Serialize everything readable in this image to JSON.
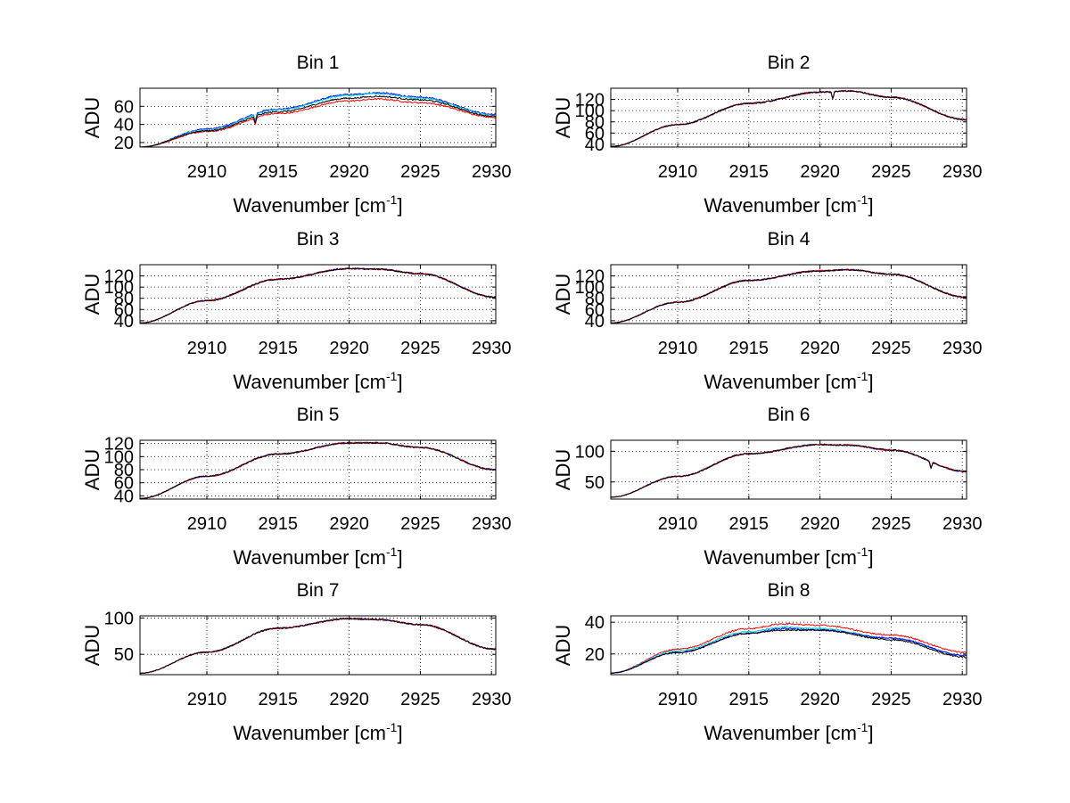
{
  "colors": {
    "black": "#000000",
    "blue": "#0000ff",
    "cyan": "#00d0d0",
    "red": "#ff0000"
  },
  "chart_data": [
    {
      "type": "line",
      "title": "Bin 1",
      "xlabel": "Wavenumber [cm",
      "xlabel_sup": "-1",
      "xlabel_end": "]",
      "ylabel": "ADU",
      "xlim": [
        2905.3,
        2930.3
      ],
      "xticks": [
        2910,
        2915,
        2920,
        2925,
        2930
      ],
      "ylim": [
        15,
        80
      ],
      "yticks": [
        20,
        40,
        60
      ],
      "grid": true,
      "x": [
        2905.3,
        2910,
        2915,
        2920,
        2922,
        2925,
        2930.3
      ],
      "series": [
        {
          "color": "blue",
          "values": [
            15,
            35,
            57,
            73,
            75,
            70,
            51
          ]
        },
        {
          "color": "cyan",
          "values": [
            15,
            34,
            56,
            72,
            74,
            69,
            50
          ]
        },
        {
          "color": "red",
          "values": [
            15,
            32,
            52,
            66,
            68,
            64,
            48
          ]
        },
        {
          "color": "black",
          "values": [
            15,
            33,
            54,
            69,
            71,
            67,
            49
          ]
        }
      ],
      "dips": [
        {
          "x": 2913.4,
          "depth": 8
        }
      ]
    },
    {
      "type": "line",
      "title": "Bin 2",
      "xlabel": "Wavenumber [cm",
      "xlabel_sup": "-1",
      "xlabel_end": "]",
      "ylabel": "ADU",
      "xlim": [
        2905.3,
        2930.3
      ],
      "xticks": [
        2910,
        2915,
        2920,
        2925,
        2930
      ],
      "ylim": [
        35,
        140
      ],
      "yticks": [
        40,
        60,
        80,
        100,
        120
      ],
      "grid": true,
      "x": [
        2905.3,
        2910,
        2915,
        2920,
        2922,
        2925,
        2930.3
      ],
      "series": [
        {
          "color": "blue",
          "values": [
            36,
            75,
            113,
            133,
            135,
            124,
            84
          ]
        },
        {
          "color": "red",
          "values": [
            36,
            75,
            113,
            133,
            135,
            124,
            84
          ]
        },
        {
          "color": "black",
          "values": [
            36,
            75,
            113,
            133,
            135,
            124,
            84
          ]
        }
      ],
      "dips": [
        {
          "x": 2920.9,
          "depth": 12
        }
      ]
    },
    {
      "type": "line",
      "title": "Bin 3",
      "xlabel": "Wavenumber [cm",
      "xlabel_sup": "-1",
      "xlabel_end": "]",
      "ylabel": "ADU",
      "xlim": [
        2905.3,
        2930.3
      ],
      "xticks": [
        2910,
        2915,
        2920,
        2925,
        2930
      ],
      "ylim": [
        35,
        140
      ],
      "yticks": [
        40,
        60,
        80,
        100,
        120
      ],
      "grid": true,
      "x": [
        2905.3,
        2910,
        2915,
        2920,
        2922,
        2925,
        2930.3
      ],
      "series": [
        {
          "color": "blue",
          "values": [
            36,
            76,
            114,
            133,
            132,
            124,
            82
          ]
        },
        {
          "color": "red",
          "values": [
            36,
            76,
            114,
            133,
            132,
            124,
            82
          ]
        },
        {
          "color": "black",
          "values": [
            36,
            76,
            114,
            133,
            132,
            124,
            82
          ]
        }
      ],
      "dips": []
    },
    {
      "type": "line",
      "title": "Bin 4",
      "xlabel": "Wavenumber [cm",
      "xlabel_sup": "-1",
      "xlabel_end": "]",
      "ylabel": "ADU",
      "xlim": [
        2905.3,
        2930.3
      ],
      "xticks": [
        2910,
        2915,
        2920,
        2925,
        2930
      ],
      "ylim": [
        35,
        140
      ],
      "yticks": [
        40,
        60,
        80,
        100,
        120
      ],
      "grid": true,
      "x": [
        2905.3,
        2910,
        2915,
        2920,
        2922,
        2925,
        2930.3
      ],
      "series": [
        {
          "color": "blue",
          "values": [
            36,
            73,
            112,
            129,
            131,
            123,
            82
          ]
        },
        {
          "color": "red",
          "values": [
            36,
            73,
            112,
            129,
            131,
            123,
            82
          ]
        },
        {
          "color": "black",
          "values": [
            36,
            73,
            112,
            129,
            131,
            123,
            82
          ]
        }
      ],
      "dips": []
    },
    {
      "type": "line",
      "title": "Bin 5",
      "xlabel": "Wavenumber [cm",
      "xlabel_sup": "-1",
      "xlabel_end": "]",
      "ylabel": "ADU",
      "xlim": [
        2905.3,
        2930.3
      ],
      "xticks": [
        2910,
        2915,
        2920,
        2925,
        2930
      ],
      "ylim": [
        35,
        125
      ],
      "yticks": [
        40,
        60,
        80,
        100,
        120
      ],
      "grid": true,
      "x": [
        2905.3,
        2910,
        2915,
        2920,
        2922,
        2925,
        2930.3
      ],
      "series": [
        {
          "color": "blue",
          "values": [
            36,
            70,
            104,
            121,
            121,
            114,
            80
          ]
        },
        {
          "color": "red",
          "values": [
            36,
            70,
            104,
            121,
            121,
            114,
            80
          ]
        },
        {
          "color": "black",
          "values": [
            36,
            70,
            104,
            121,
            121,
            114,
            80
          ]
        }
      ],
      "dips": []
    },
    {
      "type": "line",
      "title": "Bin 6",
      "xlabel": "Wavenumber [cm",
      "xlabel_sup": "-1",
      "xlabel_end": "]",
      "ylabel": "ADU",
      "xlim": [
        2905.3,
        2930.3
      ],
      "xticks": [
        2910,
        2915,
        2920,
        2925,
        2930
      ],
      "ylim": [
        22,
        118
      ],
      "yticks": [
        50,
        100
      ],
      "grid": true,
      "x": [
        2905.3,
        2910,
        2915,
        2920,
        2922,
        2925,
        2930.3
      ],
      "series": [
        {
          "color": "blue",
          "values": [
            25,
            59,
            96,
            111,
            110,
            102,
            67
          ]
        },
        {
          "color": "red",
          "values": [
            25,
            59,
            96,
            111,
            110,
            102,
            67
          ]
        },
        {
          "color": "black",
          "values": [
            25,
            59,
            96,
            111,
            110,
            102,
            67
          ]
        }
      ],
      "dips": [
        {
          "x": 2927.8,
          "depth": 10
        }
      ]
    },
    {
      "type": "line",
      "title": "Bin 7",
      "xlabel": "Wavenumber [cm",
      "xlabel_sup": "-1",
      "xlabel_end": "]",
      "ylabel": "ADU",
      "xlim": [
        2905.3,
        2930.3
      ],
      "xticks": [
        2910,
        2915,
        2920,
        2925,
        2930
      ],
      "ylim": [
        22,
        103
      ],
      "yticks": [
        50,
        100
      ],
      "grid": true,
      "x": [
        2905.3,
        2910,
        2915,
        2920,
        2922,
        2925,
        2930.3
      ],
      "series": [
        {
          "color": "blue",
          "values": [
            24,
            53,
            86,
            99,
            98,
            91,
            57
          ]
        },
        {
          "color": "red",
          "values": [
            24,
            53,
            86,
            99,
            98,
            91,
            57
          ]
        },
        {
          "color": "black",
          "values": [
            24,
            53,
            86,
            99,
            98,
            91,
            57
          ]
        }
      ],
      "dips": []
    },
    {
      "type": "line",
      "title": "Bin 8",
      "xlabel": "Wavenumber [cm",
      "xlabel_sup": "-1",
      "xlabel_end": "]",
      "ylabel": "ADU",
      "xlim": [
        2905.3,
        2930.3
      ],
      "xticks": [
        2910,
        2915,
        2920,
        2925,
        2930
      ],
      "ylim": [
        7,
        44
      ],
      "yticks": [
        20,
        40
      ],
      "grid": true,
      "x": [
        2905.3,
        2910,
        2915,
        2917.5,
        2920,
        2925,
        2930.3
      ],
      "series": [
        {
          "color": "red",
          "values": [
            8,
            23,
            36,
            39,
            38,
            32,
            21
          ]
        },
        {
          "color": "cyan",
          "values": [
            8,
            22,
            34,
            37,
            36,
            30,
            19
          ]
        },
        {
          "color": "blue",
          "values": [
            8,
            21,
            33,
            36,
            35,
            30,
            19
          ]
        },
        {
          "color": "black",
          "values": [
            8,
            21,
            33,
            35,
            35,
            29,
            18
          ]
        }
      ],
      "dips": []
    }
  ]
}
